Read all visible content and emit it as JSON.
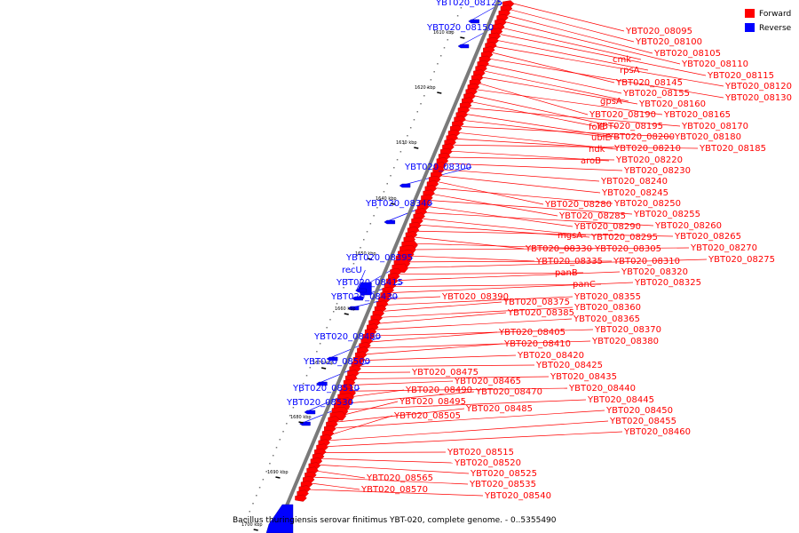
{
  "legend": {
    "forward_label": "Forward",
    "reverse_label": "Reverse",
    "forward_color": "#ff0000",
    "reverse_color": "#0000ff"
  },
  "caption": "Bacillus thuringiensis serovar finitimus YBT-020, complete genome. - 0..5355490",
  "ticks": [
    "1610 kbp",
    "1620 kbp",
    "1630 kbp",
    "1640 kbp",
    "1650 kbp",
    "1660 kbp",
    "1670 kbp",
    "1680 kbp",
    "1690 kbp",
    "1700 kbp"
  ],
  "forward_labels": [
    "YBT020_08095",
    "YBT020_08100",
    "YBT020_08105",
    "YBT020_08110",
    "cmk",
    "YBT020_08115",
    "rpsA",
    "YBT020_08120",
    "YBT020_08145",
    "YBT020_08130",
    "YBT020_08155",
    "gpsA",
    "YBT020_08160",
    "YBT020_08190",
    "YBT020_08165",
    "folE",
    "YBT020_08195",
    "YBT020_08170",
    "ubiE",
    "YBT020_08200",
    "YBT020_08180",
    "ndk",
    "YBT020_08210",
    "YBT020_08185",
    "aroB",
    "YBT020_08220",
    "YBT020_08230",
    "YBT020_08240",
    "YBT020_08245",
    "YBT020_08280",
    "YBT020_08250",
    "YBT020_08285",
    "YBT020_08255",
    "YBT020_08290",
    "YBT020_08260",
    "mgsA",
    "YBT020_08295",
    "YBT020_08265",
    "YBT020_08330",
    "YBT020_08305",
    "YBT020_08270",
    "YBT020_08335",
    "YBT020_08310",
    "YBT020_08275",
    "panB",
    "YBT020_08320",
    "panC",
    "YBT020_08325",
    "YBT020_08390",
    "YBT020_08355",
    "YBT020_08375",
    "YBT020_08360",
    "YBT020_08385",
    "YBT020_08365",
    "YBT020_08370",
    "YBT020_08405",
    "YBT020_08380",
    "YBT020_08410",
    "YBT020_08420",
    "YBT020_08425",
    "YBT020_08475",
    "YBT020_08435",
    "YBT020_08465",
    "YBT020_08440",
    "YBT020_08490",
    "YBT020_08470",
    "YBT020_08445",
    "YBT020_08495",
    "YBT020_08485",
    "YBT020_08450",
    "YBT020_08505",
    "YBT020_08455",
    "YBT020_08460",
    "YBT020_08515",
    "YBT020_08520",
    "YBT020_08525",
    "YBT020_08565",
    "YBT020_08535",
    "YBT020_08570",
    "YBT020_08540"
  ],
  "reverse_labels": [
    "YBT020_08125",
    "YBT020_08150",
    "YBT020_08300",
    "YBT020_08340",
    "YBT020_08395",
    "recU",
    "YBT020_08415",
    "YBT020_08430",
    "YBT020_08480",
    "YBT020_08500",
    "YBT020_08510",
    "YBT020_08530"
  ]
}
